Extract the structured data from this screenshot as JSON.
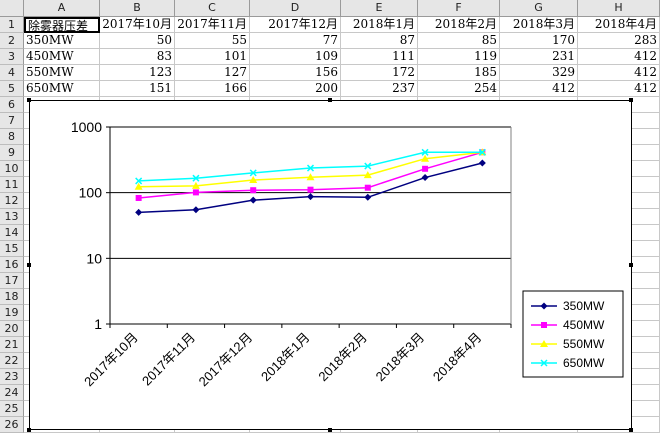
{
  "spreadsheet": {
    "columns": [
      "A",
      "B",
      "C",
      "D",
      "E",
      "F",
      "G",
      "H"
    ],
    "rows": [
      "1",
      "2",
      "3",
      "4",
      "5",
      "6",
      "7",
      "8",
      "9",
      "10",
      "11",
      "12",
      "13",
      "14",
      "15",
      "16",
      "17",
      "18",
      "19",
      "20",
      "21",
      "22",
      "23",
      "24",
      "25",
      "26"
    ],
    "header_row": [
      "除雾器压差",
      "2017年10月",
      "2017年11月",
      "2017年12月",
      "2018年1月",
      "2018年2月",
      "2018年3月",
      "2018年4月"
    ],
    "data_rows": [
      [
        "350MW",
        "50",
        "55",
        "77",
        "87",
        "85",
        "170",
        "283"
      ],
      [
        "450MW",
        "83",
        "101",
        "109",
        "111",
        "119",
        "231",
        "412"
      ],
      [
        "550MW",
        "123",
        "127",
        "156",
        "172",
        "185",
        "329",
        "412"
      ],
      [
        "650MW",
        "151",
        "166",
        "200",
        "237",
        "254",
        "412",
        "412"
      ]
    ]
  },
  "chart_data": {
    "type": "line",
    "yscale": "log",
    "ylim": [
      1,
      1000
    ],
    "ytick_labels": [
      "1000",
      "100",
      "10",
      "1"
    ],
    "categories": [
      "2017年10月",
      "2017年11月",
      "2017年12月",
      "2018年1月",
      "2018年2月",
      "2018年3月",
      "2018年4月"
    ],
    "grid": true,
    "legend_position": "right",
    "series": [
      {
        "name": "350MW",
        "color": "#000080",
        "marker": "diamond",
        "values": [
          50,
          55,
          77,
          87,
          85,
          170,
          283
        ]
      },
      {
        "name": "450MW",
        "color": "#ff00ff",
        "marker": "square",
        "values": [
          83,
          101,
          109,
          111,
          119,
          231,
          412
        ]
      },
      {
        "name": "550MW",
        "color": "#ffff00",
        "marker": "triangle",
        "values": [
          123,
          127,
          156,
          172,
          185,
          329,
          412
        ]
      },
      {
        "name": "650MW",
        "color": "#00ffff",
        "marker": "x",
        "values": [
          151,
          166,
          200,
          237,
          254,
          412,
          412
        ]
      }
    ]
  }
}
